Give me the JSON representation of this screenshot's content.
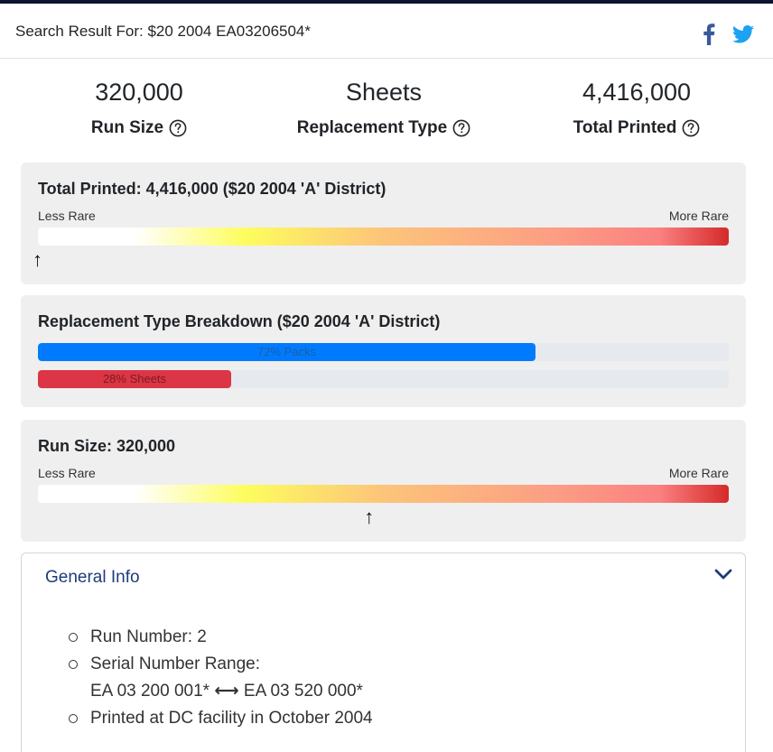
{
  "header": {
    "title": "Search Result For: $20 2004 EA03206504*",
    "share_icons": [
      "facebook-icon",
      "twitter-icon"
    ],
    "colors": {
      "facebook": "#3b5998",
      "twitter": "#1da1f2"
    }
  },
  "stats": [
    {
      "value": "320,000",
      "label": "Run Size"
    },
    {
      "value": "Sheets",
      "label": "Replacement Type"
    },
    {
      "value": "4,416,000",
      "label": "Total Printed"
    }
  ],
  "total_printed_card": {
    "title": "Total Printed: 4,416,000 ($20 2004 'A' District)",
    "less_rare": "Less Rare",
    "more_rare": "More Rare",
    "marker_fraction": 0.0
  },
  "breakdown_card": {
    "title": "Replacement Type Breakdown ($20 2004 'A' District)",
    "bars": [
      {
        "label": "72% Packs",
        "percent": 72,
        "color": "#007bff"
      },
      {
        "label": "28% Sheets",
        "percent": 28,
        "color": "#dc3545"
      }
    ]
  },
  "run_size_card": {
    "title": "Run Size: 320,000",
    "less_rare": "Less Rare",
    "more_rare": "More Rare",
    "marker_fraction": 0.48
  },
  "general_info": {
    "title": "General Info",
    "items": [
      {
        "text": "Run Number: 2"
      },
      {
        "text": "Serial Number Range:",
        "range_start": "EA 03 200 001*",
        "range_end": "EA 03 520 000*"
      },
      {
        "text": "Printed at DC facility in October 2004"
      }
    ]
  }
}
